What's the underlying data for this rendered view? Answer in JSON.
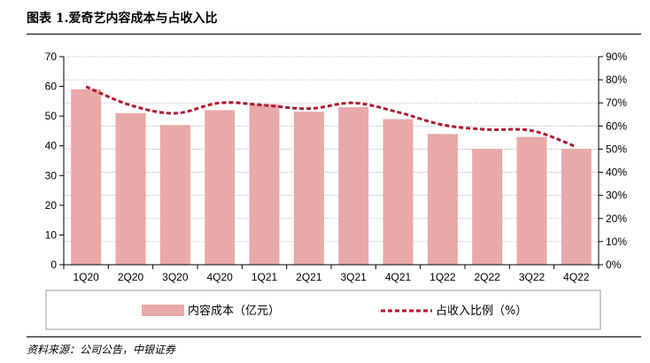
{
  "header": {
    "title": "图表 1.爱奇艺内容成本与占收入比",
    "source": "资料来源：公司公告，中银证券"
  },
  "chart_data": {
    "type": "bar",
    "categories": [
      "1Q20",
      "2Q20",
      "3Q20",
      "4Q20",
      "1Q21",
      "2Q21",
      "3Q21",
      "4Q21",
      "1Q22",
      "2Q22",
      "3Q22",
      "4Q22"
    ],
    "series": [
      {
        "name": "内容成本（亿元）",
        "type": "bar",
        "axis": "left",
        "color": "#e8a9a9",
        "values": [
          59,
          51,
          47,
          52,
          54,
          51.5,
          53,
          49,
          44,
          39,
          43,
          39
        ]
      },
      {
        "name": "占收入比例（%）",
        "type": "line",
        "axis": "right",
        "color": "#b0172e",
        "values": [
          77,
          69,
          65.5,
          70,
          69,
          67.5,
          70,
          66,
          60.5,
          58.5,
          58,
          51
        ]
      }
    ],
    "y_left": {
      "min": 0,
      "max": 70,
      "step": 10,
      "ticks": [
        "0",
        "10",
        "20",
        "30",
        "40",
        "50",
        "60",
        "70"
      ]
    },
    "y_right": {
      "min": 0,
      "max": 90,
      "step": 10,
      "ticks": [
        "0%",
        "10%",
        "20%",
        "30%",
        "40%",
        "50%",
        "60%",
        "70%",
        "80%",
        "90%"
      ]
    },
    "grid": true,
    "legend_position": "bottom"
  }
}
